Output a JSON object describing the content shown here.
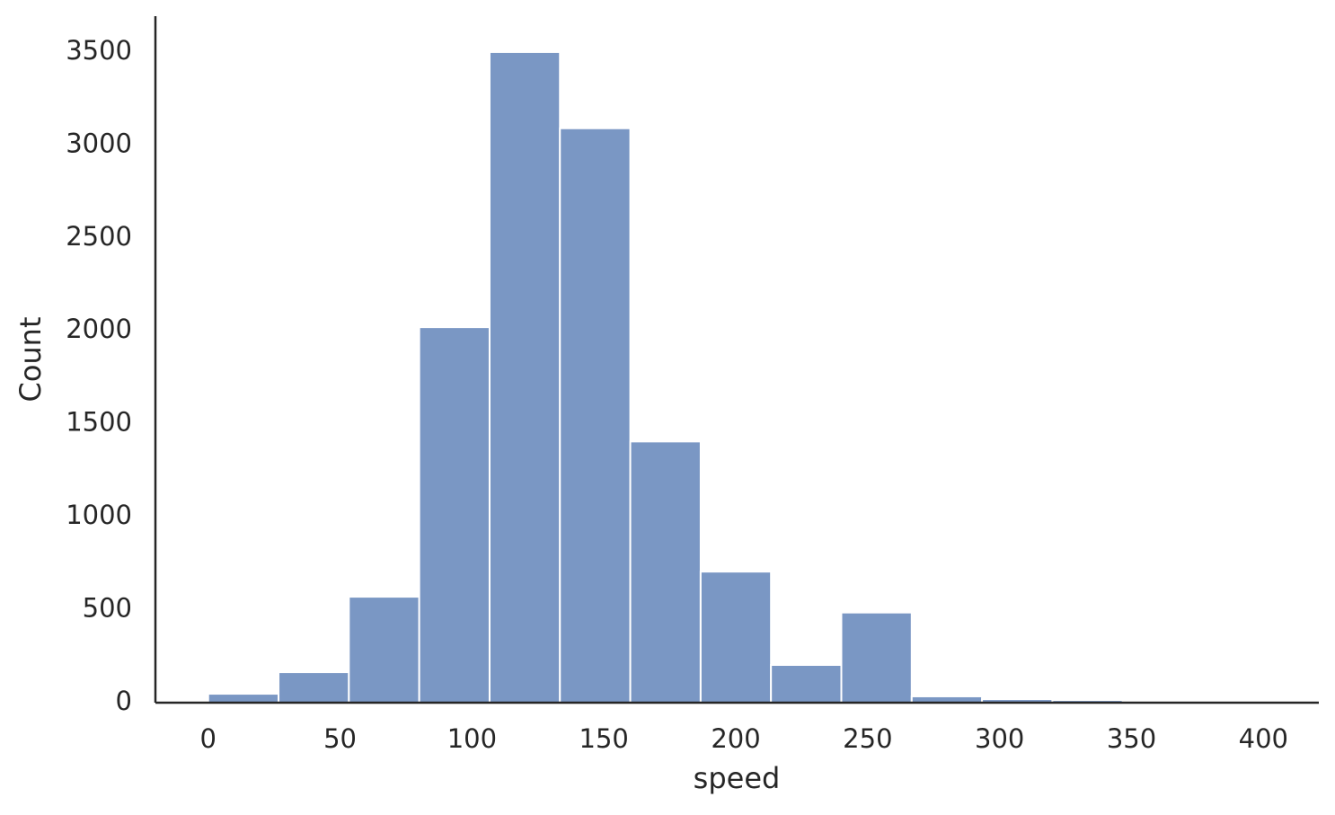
{
  "chart_data": {
    "type": "histogram",
    "x_label": "speed",
    "y_label": "Count",
    "bins": [
      0,
      26.67,
      53.33,
      80,
      106.67,
      133.33,
      160,
      186.67,
      213.33,
      240,
      266.67,
      293.33,
      320,
      346.67,
      373.33,
      400
    ],
    "values": [
      48,
      164,
      570,
      2020,
      3500,
      3090,
      1405,
      705,
      203,
      485,
      34,
      19,
      14,
      5,
      3
    ],
    "color": "#7a97c4",
    "xlim": [
      -20,
      421
    ],
    "xticks": [
      0,
      50,
      100,
      150,
      200,
      250,
      300,
      350,
      400
    ],
    "ylim": [
      0,
      3693
    ],
    "yticks": [
      0,
      500,
      1000,
      1500,
      2000,
      2500,
      3000,
      3500
    ],
    "grid": false
  }
}
